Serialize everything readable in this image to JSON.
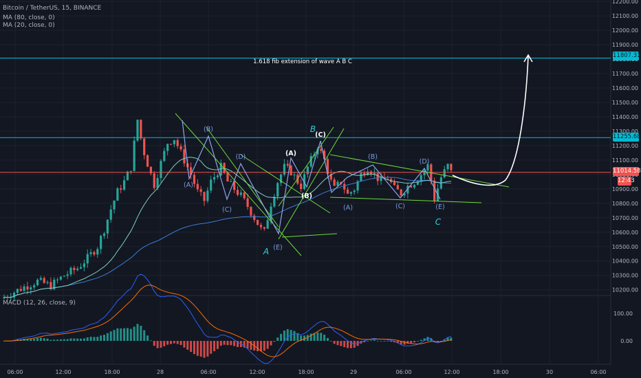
{
  "symbol_title": "Bitcoin / TetherUS, 15, BINANCE",
  "indicators": {
    "ma80": "MA (80, close, 0)",
    "ma20": "MA (20, close, 0)",
    "macd": "MACD (12, 26, close, 9)"
  },
  "price_tags": {
    "fib_upper": "11807.31",
    "fib_lower": "11255.68",
    "last_price": "11014.58",
    "countdown": "12:43"
  },
  "colors": {
    "background": "#131722",
    "up": "#26a69a",
    "down": "#ef5350",
    "fib_line": "#00bcd4",
    "wave_label_blue": "#7b9be0",
    "wave_label_white": "#ffffff",
    "wave_label_cyan": "#2fd0d8",
    "trendline": "#6fdc3c",
    "ma80": "#3d7dd6",
    "ma20": "#7fcfbf"
  },
  "chart_data": [
    {
      "type": "candlestick",
      "title": "Bitcoin / TetherUS, 15, BINANCE",
      "y_axis": {
        "ticks": [
          12200,
          12100,
          12000,
          11900,
          11800,
          11700,
          11600,
          11500,
          11400,
          11300,
          11200,
          11100,
          11000,
          10900,
          10800,
          10700,
          10600,
          10500,
          10400,
          10300,
          10200
        ],
        "tick_labels": [
          "12200.00",
          "12100.00",
          "12000.00",
          "11900.00",
          "11800.00",
          "11700.00",
          "11600.00",
          "11500.00",
          "11400.00",
          "11300.00",
          "11200.00",
          "11100.00",
          "11000.00",
          "10900.00",
          "10800.00",
          "10700.00",
          "10600.00",
          "10500.00",
          "10400.00",
          "10300.00",
          "10200.00"
        ],
        "range": [
          10170,
          12210
        ]
      },
      "x_axis": {
        "tick_labels": [
          "06:00",
          "12:00",
          "18:00",
          "28",
          "06:00",
          "12:00",
          "18:00",
          "29",
          "06:00",
          "12:00",
          "18:00",
          "30",
          "06:00"
        ]
      },
      "price_path": [
        [
          0,
          10150
        ],
        [
          6,
          10220
        ],
        [
          10,
          10260
        ],
        [
          14,
          10230
        ],
        [
          18,
          10300
        ],
        [
          22,
          10350
        ],
        [
          25,
          10420
        ],
        [
          28,
          10500
        ],
        [
          30,
          10620
        ],
        [
          32,
          10760
        ],
        [
          34,
          10880
        ],
        [
          36,
          10950
        ],
        [
          38,
          11050
        ],
        [
          40,
          11380
        ],
        [
          41,
          11250
        ],
        [
          42,
          11150
        ],
        [
          44,
          11000
        ],
        [
          45,
          10930
        ],
        [
          47,
          11080
        ],
        [
          49,
          11220
        ],
        [
          51,
          11250
        ],
        [
          53,
          11150
        ],
        [
          56,
          11000
        ],
        [
          58,
          10880
        ],
        [
          60,
          10820
        ],
        [
          62,
          10950
        ],
        [
          64,
          11020
        ],
        [
          65,
          11050
        ],
        [
          67,
          10950
        ],
        [
          69,
          10900
        ],
        [
          71,
          10850
        ],
        [
          73,
          10780
        ],
        [
          75,
          10700
        ],
        [
          77,
          10620
        ],
        [
          78,
          10600
        ],
        [
          80,
          10800
        ],
        [
          82,
          10950
        ],
        [
          84,
          11050
        ],
        [
          86,
          11020
        ],
        [
          88,
          10950
        ],
        [
          89,
          10920
        ],
        [
          91,
          11050
        ],
        [
          93,
          11150
        ],
        [
          94,
          11200
        ],
        [
          96,
          11100
        ],
        [
          98,
          10950
        ],
        [
          99,
          10900
        ],
        [
          101,
          10950
        ],
        [
          103,
          10860
        ],
        [
          105,
          10900
        ],
        [
          107,
          11000
        ],
        [
          109,
          11050
        ],
        [
          111,
          11000
        ],
        [
          113,
          10950
        ],
        [
          115,
          10980
        ],
        [
          117,
          10900
        ],
        [
          119,
          10870
        ],
        [
          121,
          10920
        ],
        [
          123,
          10950
        ],
        [
          125,
          11000
        ],
        [
          127,
          11060
        ],
        [
          128,
          10960
        ],
        [
          129,
          10830
        ],
        [
          131,
          10980
        ],
        [
          133,
          11060
        ],
        [
          134,
          11014.58
        ]
      ],
      "wave_labels": [
        {
          "text": "(A)",
          "price": 10970,
          "color": "blue"
        },
        {
          "text": "(B)",
          "price": 11275,
          "color": "blue"
        },
        {
          "text": "(C)",
          "price": 10820,
          "color": "blue"
        },
        {
          "text": "(D)",
          "price": 11150,
          "color": "blue"
        },
        {
          "text": "(E)",
          "price": 10580,
          "color": "blue"
        },
        {
          "text": "A",
          "price": 10500,
          "color": "cyan"
        },
        {
          "text": "(A)",
          "price": 11150,
          "color": "white"
        },
        {
          "text": "(B)",
          "price": 10930,
          "color": "white"
        },
        {
          "text": "B",
          "price": 11280,
          "color": "cyan"
        },
        {
          "text": "(C)",
          "price": 11245,
          "color": "white"
        },
        {
          "text": "(B)",
          "price": 11125,
          "color": "blue"
        },
        {
          "text": "(D)",
          "price": 11090,
          "color": "blue"
        },
        {
          "text": "(A)",
          "price": 10840,
          "color": "blue"
        },
        {
          "text": "(C)",
          "price": 10840,
          "color": "blue"
        },
        {
          "text": "(E)",
          "price": 10835,
          "color": "blue"
        },
        {
          "text": "C",
          "price": 10740,
          "color": "cyan"
        }
      ],
      "annotation": "1.618 fib extension of wave A B C",
      "horizontal_levels": [
        11807.31,
        11255.68,
        11014.58
      ],
      "projection_target": 11807.31
    },
    {
      "type": "histogram",
      "title": "MACD (12, 26, close, 9)",
      "y_axis": {
        "ticks": [
          100,
          0
        ],
        "tick_labels": [
          "100.00",
          "0.00"
        ],
        "range": [
          -60,
          140
        ]
      }
    }
  ]
}
